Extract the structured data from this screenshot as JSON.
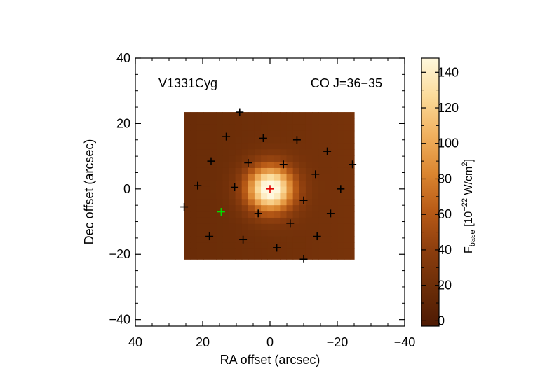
{
  "chart_data": {
    "type": "heatmap",
    "title": "",
    "object_label": "V1331Cyg",
    "line_label": "CO J=36−35",
    "xlabel": "RA offset (arcsec)",
    "ylabel": "Dec offset (arcsec)",
    "xlim": [
      40,
      -40
    ],
    "ylim": [
      -42,
      40
    ],
    "x_ticks": [
      40,
      20,
      0,
      -20,
      -40
    ],
    "x_tick_labels": [
      "40",
      "20",
      "0",
      "−20",
      "−40"
    ],
    "y_ticks": [
      40,
      20,
      0,
      -20,
      -40
    ],
    "y_tick_labels": [
      "40",
      "20",
      "0",
      "−20",
      "−40"
    ],
    "map_extent": {
      "ra": [
        25.5,
        -25
      ],
      "dec": [
        -21.5,
        23.5
      ]
    },
    "map_pixel_size": 1.9,
    "map_background": {
      "base": 22,
      "gradient_ra": -0.18
    },
    "emission_peak": {
      "ra": 0,
      "dec": 0,
      "value": 140,
      "sigma": 4.8
    },
    "colorbar": {
      "label_prefix": "F",
      "label_sub": "base",
      "label_units": " [10",
      "label_exp": "−22",
      "label_units2": " W/cm",
      "label_exp2": "2",
      "label_end": "]",
      "range": [
        -3,
        148
      ],
      "ticks": [
        0,
        20,
        40,
        60,
        80,
        100,
        120,
        140
      ],
      "tick_labels": [
        "0",
        "20",
        "40",
        "60",
        "80",
        "100",
        "120",
        "140"
      ],
      "colors": [
        "#4e1a04",
        "#6b2d08",
        "#8d3e0e",
        "#b85a16",
        "#db8630",
        "#f1b15f",
        "#fbdb9a",
        "#fff8dd"
      ]
    },
    "spaxels": [
      {
        "ra": 9,
        "dec": 23.5,
        "color": "black"
      },
      {
        "ra": 13,
        "dec": 16,
        "color": "black"
      },
      {
        "ra": 2,
        "dec": 15.5,
        "color": "black"
      },
      {
        "ra": -8,
        "dec": 15,
        "color": "black"
      },
      {
        "ra": -17,
        "dec": 11.5,
        "color": "black"
      },
      {
        "ra": 17.5,
        "dec": 8.5,
        "color": "black"
      },
      {
        "ra": 6.5,
        "dec": 8,
        "color": "black"
      },
      {
        "ra": -4,
        "dec": 7.5,
        "color": "black"
      },
      {
        "ra": -24.5,
        "dec": 7.5,
        "color": "black"
      },
      {
        "ra": -13.5,
        "dec": 4.5,
        "color": "black"
      },
      {
        "ra": 21.5,
        "dec": 1,
        "color": "black"
      },
      {
        "ra": 10.5,
        "dec": 0.5,
        "color": "black"
      },
      {
        "ra": 0,
        "dec": 0,
        "color": "red"
      },
      {
        "ra": -21,
        "dec": 0,
        "color": "black"
      },
      {
        "ra": -10,
        "dec": -3.5,
        "color": "black"
      },
      {
        "ra": 25.5,
        "dec": -5.5,
        "color": "black"
      },
      {
        "ra": 14.5,
        "dec": -7,
        "color": "green"
      },
      {
        "ra": 3.5,
        "dec": -7.5,
        "color": "black"
      },
      {
        "ra": -18,
        "dec": -7.5,
        "color": "black"
      },
      {
        "ra": -6,
        "dec": -10.5,
        "color": "black"
      },
      {
        "ra": 18,
        "dec": -14.5,
        "color": "black"
      },
      {
        "ra": 8,
        "dec": -15.5,
        "color": "black"
      },
      {
        "ra": -14,
        "dec": -14.5,
        "color": "black"
      },
      {
        "ra": -2,
        "dec": -18,
        "color": "black"
      },
      {
        "ra": -10,
        "dec": -21.5,
        "color": "black"
      }
    ]
  }
}
